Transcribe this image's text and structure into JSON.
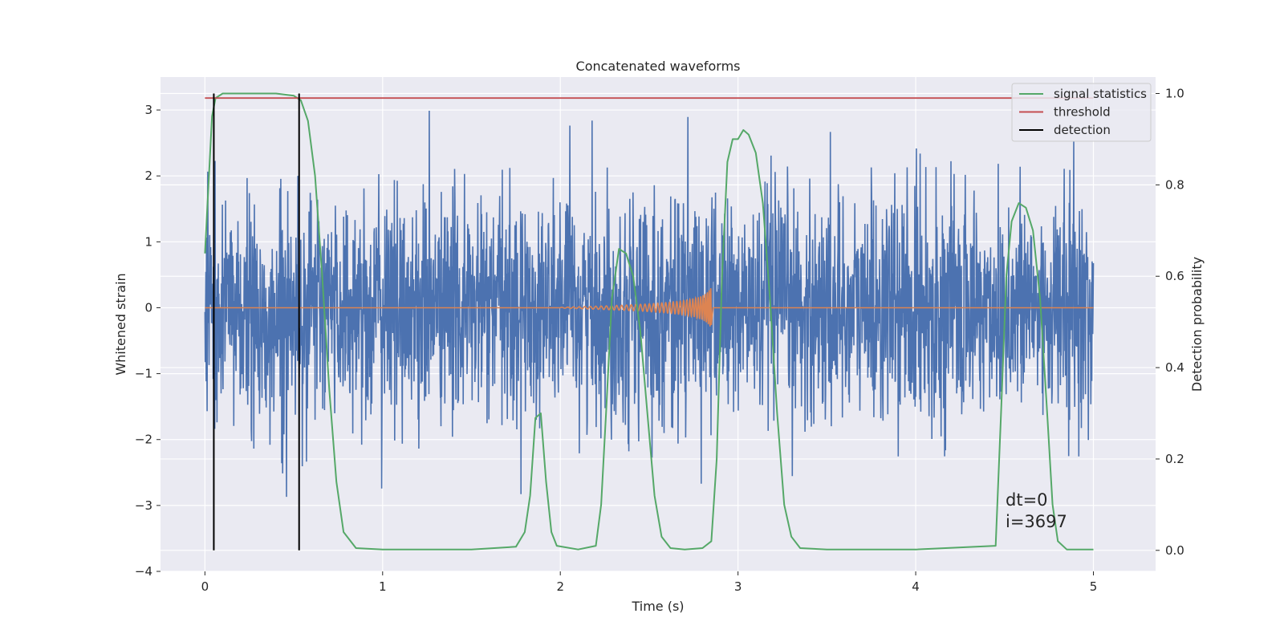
{
  "chart_data": {
    "type": "line",
    "title": "Concatenated waveforms",
    "xlabel": "Time (s)",
    "ylabel": "Whitened strain",
    "ylabel_right": "Detection probability",
    "xlim": [
      -0.25,
      5.35
    ],
    "ylim": [
      -4.0,
      3.5
    ],
    "ylim_right": [
      -0.046,
      1.036
    ],
    "xticks": [
      0,
      1,
      2,
      3,
      4,
      5
    ],
    "yticks": [
      -4,
      -3,
      -2,
      -1,
      0,
      1,
      2,
      3
    ],
    "yticks_right": [
      0.0,
      0.2,
      0.4,
      0.6,
      0.8,
      1.0
    ],
    "xtick_labels": [
      "0",
      "1",
      "2",
      "3",
      "4",
      "5"
    ],
    "ytick_labels": [
      "−4",
      "−3",
      "−2",
      "−1",
      "0",
      "1",
      "2",
      "3"
    ],
    "ytick_right_labels": [
      "0.0",
      "0.2",
      "0.4",
      "0.6",
      "0.8",
      "1.0"
    ],
    "grid": true,
    "legend_position": "top-right",
    "colors": {
      "strain": "#4c72b0",
      "template": "#dd8452",
      "signal_statistics": "#55a868",
      "threshold": "#c44e52",
      "detection": "#000000",
      "plot_bg": "#eaeaf2",
      "grid": "#ffffff"
    },
    "legend": [
      {
        "label": "signal statistics",
        "color": "#55a868"
      },
      {
        "label": "threshold",
        "color": "#c44e52"
      },
      {
        "label": "detection",
        "color": "#000000"
      }
    ],
    "strain_noise": {
      "x_range": [
        0.0,
        5.0
      ],
      "envelope": [
        -3.6,
        3.3
      ]
    },
    "template_chirp": {
      "x_start": 2.0,
      "x_merger": 2.85,
      "peak_amplitude": 0.6
    },
    "threshold_value": 0.99,
    "detections": [
      0.05,
      0.53
    ],
    "signal_statistics": {
      "x": [
        0.0,
        0.02,
        0.04,
        0.06,
        0.1,
        0.2,
        0.3,
        0.4,
        0.5,
        0.54,
        0.58,
        0.62,
        0.66,
        0.7,
        0.74,
        0.78,
        0.85,
        1.0,
        1.5,
        1.75,
        1.8,
        1.83,
        1.86,
        1.89,
        1.92,
        1.95,
        1.98,
        2.1,
        2.2,
        2.23,
        2.26,
        2.29,
        2.33,
        2.37,
        2.41,
        2.45,
        2.49,
        2.53,
        2.57,
        2.62,
        2.7,
        2.8,
        2.85,
        2.88,
        2.91,
        2.94,
        2.97,
        3.0,
        3.03,
        3.06,
        3.1,
        3.14,
        3.18,
        3.22,
        3.26,
        3.3,
        3.35,
        3.5,
        4.0,
        4.45,
        4.48,
        4.51,
        4.54,
        4.58,
        4.62,
        4.66,
        4.7,
        4.74,
        4.77,
        4.8,
        4.85,
        5.0
      ],
      "y": [
        0.65,
        0.8,
        0.95,
        0.99,
        1.0,
        1.0,
        1.0,
        1.0,
        0.995,
        0.985,
        0.94,
        0.82,
        0.6,
        0.35,
        0.15,
        0.04,
        0.005,
        0.002,
        0.002,
        0.008,
        0.04,
        0.12,
        0.29,
        0.3,
        0.15,
        0.04,
        0.01,
        0.002,
        0.01,
        0.1,
        0.32,
        0.55,
        0.66,
        0.65,
        0.6,
        0.48,
        0.3,
        0.12,
        0.03,
        0.005,
        0.002,
        0.005,
        0.02,
        0.2,
        0.6,
        0.85,
        0.9,
        0.9,
        0.92,
        0.91,
        0.87,
        0.76,
        0.55,
        0.3,
        0.1,
        0.03,
        0.005,
        0.002,
        0.002,
        0.01,
        0.3,
        0.6,
        0.72,
        0.76,
        0.75,
        0.7,
        0.55,
        0.3,
        0.1,
        0.02,
        0.002,
        0.002
      ]
    }
  },
  "annotation": {
    "line1": "dt=0",
    "line2": "i=3697"
  }
}
